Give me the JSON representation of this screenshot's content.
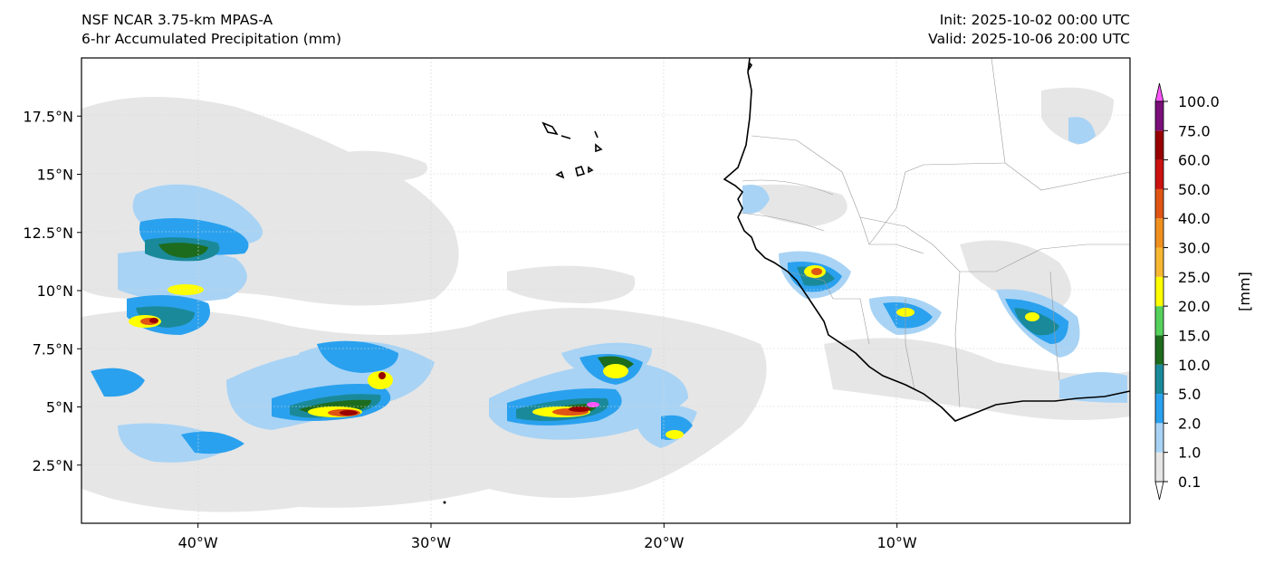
{
  "title": {
    "model": "NSF NCAR 3.75-km MPAS-A",
    "field": "6-hr Accumulated Precipitation (mm)",
    "init": "Init: 2025-10-02 00:00 UTC",
    "valid": "Valid: 2025-10-06 20:00 UTC"
  },
  "map": {
    "lon_range": [
      -45,
      0
    ],
    "lat_range": [
      0,
      20
    ],
    "lat_ticks": [
      {
        "value": 2.5,
        "label": "2.5°N"
      },
      {
        "value": 5,
        "label": "5°N"
      },
      {
        "value": 7.5,
        "label": "7.5°N"
      },
      {
        "value": 10,
        "label": "10°N"
      },
      {
        "value": 12.5,
        "label": "12.5°N"
      },
      {
        "value": 15,
        "label": "15°N"
      },
      {
        "value": 17.5,
        "label": "17.5°N"
      }
    ],
    "lon_ticks": [
      {
        "value": -40,
        "label": "40°W"
      },
      {
        "value": -30,
        "label": "30°W"
      },
      {
        "value": -20,
        "label": "20°W"
      },
      {
        "value": -10,
        "label": "10°W"
      }
    ]
  },
  "colorbar": {
    "unit_label": "[mm]",
    "levels": [
      "0.1",
      "1.0",
      "2.0",
      "5.0",
      "10.0",
      "15.0",
      "20.0",
      "25.0",
      "30.0",
      "40.0",
      "50.0",
      "60.0",
      "75.0",
      "100.0"
    ],
    "colors": [
      "#e6e6e6",
      "#a8d3f5",
      "#2aa1ee",
      "#1a8a9a",
      "#1d6b1d",
      "#55d15c",
      "#ffff00",
      "#f7b731",
      "#f0901f",
      "#e05515",
      "#cc1111",
      "#990000",
      "#7a0f7a",
      "#ff55ff"
    ]
  }
}
